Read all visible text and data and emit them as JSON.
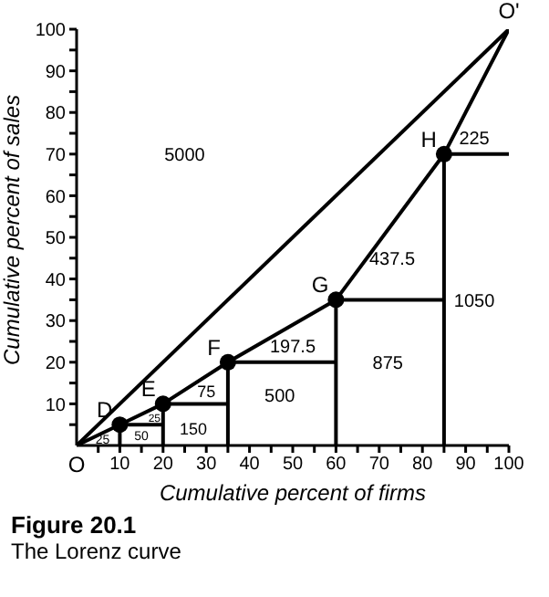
{
  "chart_data": {
    "type": "line",
    "title": "Figure 20.1",
    "subtitle": "The Lorenz curve",
    "xlabel": "Cumulative percent of firms",
    "ylabel": "Cumulative percent of sales",
    "xlim": [
      0,
      100
    ],
    "ylim": [
      0,
      100
    ],
    "xticks": [
      {
        "value": 5,
        "label": null
      },
      10,
      {
        "value": 15,
        "label": null
      },
      20,
      {
        "value": 25,
        "label": null
      },
      30,
      {
        "value": 35,
        "label": null
      },
      40,
      {
        "value": 45,
        "label": null
      },
      50,
      {
        "value": 55,
        "label": null
      },
      60,
      {
        "value": 65,
        "label": null
      },
      70,
      {
        "value": 75,
        "label": null
      },
      80,
      {
        "value": 85,
        "label": null
      },
      90,
      {
        "value": 95,
        "label": null
      },
      100
    ],
    "yticks": [
      {
        "value": 5,
        "label": null
      },
      10,
      {
        "value": 15,
        "label": null
      },
      20,
      {
        "value": 25,
        "label": null
      },
      30,
      {
        "value": 35,
        "label": null
      },
      40,
      {
        "value": 45,
        "label": null
      },
      50,
      {
        "value": 55,
        "label": null
      },
      60,
      {
        "value": 65,
        "label": null
      },
      70,
      {
        "value": 75,
        "label": null
      },
      80,
      {
        "value": 85,
        "label": null
      },
      90,
      {
        "value": 95,
        "label": null
      },
      100
    ],
    "grid": false,
    "legend": false,
    "marker": "none",
    "series": [
      {
        "color": "#000000",
        "x": [
          0,
          100
        ],
        "values": [
          0,
          100
        ]
      },
      {
        "color": "#000000",
        "x": [
          0,
          10,
          20,
          35,
          60,
          85,
          100
        ],
        "values": [
          0,
          5,
          10,
          20,
          35,
          70,
          100
        ]
      },
      {
        "color": "#000000",
        "x": [
          10,
          10,
          20,
          20,
          20,
          35,
          35,
          35,
          60,
          60,
          60,
          85,
          85,
          85,
          100
        ],
        "values": [
          0,
          5,
          5,
          0,
          10,
          10,
          0,
          20,
          20,
          0,
          35,
          35,
          0,
          70,
          70
        ]
      },
      {
        "type": "scatter",
        "color": "#000000",
        "marker": "circle",
        "x": [
          10,
          20,
          35,
          60,
          85
        ],
        "values": [
          5,
          10,
          20,
          35,
          70
        ]
      }
    ],
    "annotations": [
      {
        "text": "O",
        "x": 0,
        "y": 0
      },
      {
        "text": "O'",
        "x": 100,
        "y": 100
      },
      {
        "text": "D",
        "x": 10,
        "y": 5
      },
      {
        "text": "E",
        "x": 20,
        "y": 10
      },
      {
        "text": "F",
        "x": 35,
        "y": 20
      },
      {
        "text": "G",
        "x": 60,
        "y": 35
      },
      {
        "text": "H",
        "x": 85,
        "y": 70
      },
      "5000",
      "25",
      "25",
      "50",
      "150",
      "75",
      "500",
      "197.5",
      "875",
      "437.5",
      "1050",
      "225"
    ]
  }
}
